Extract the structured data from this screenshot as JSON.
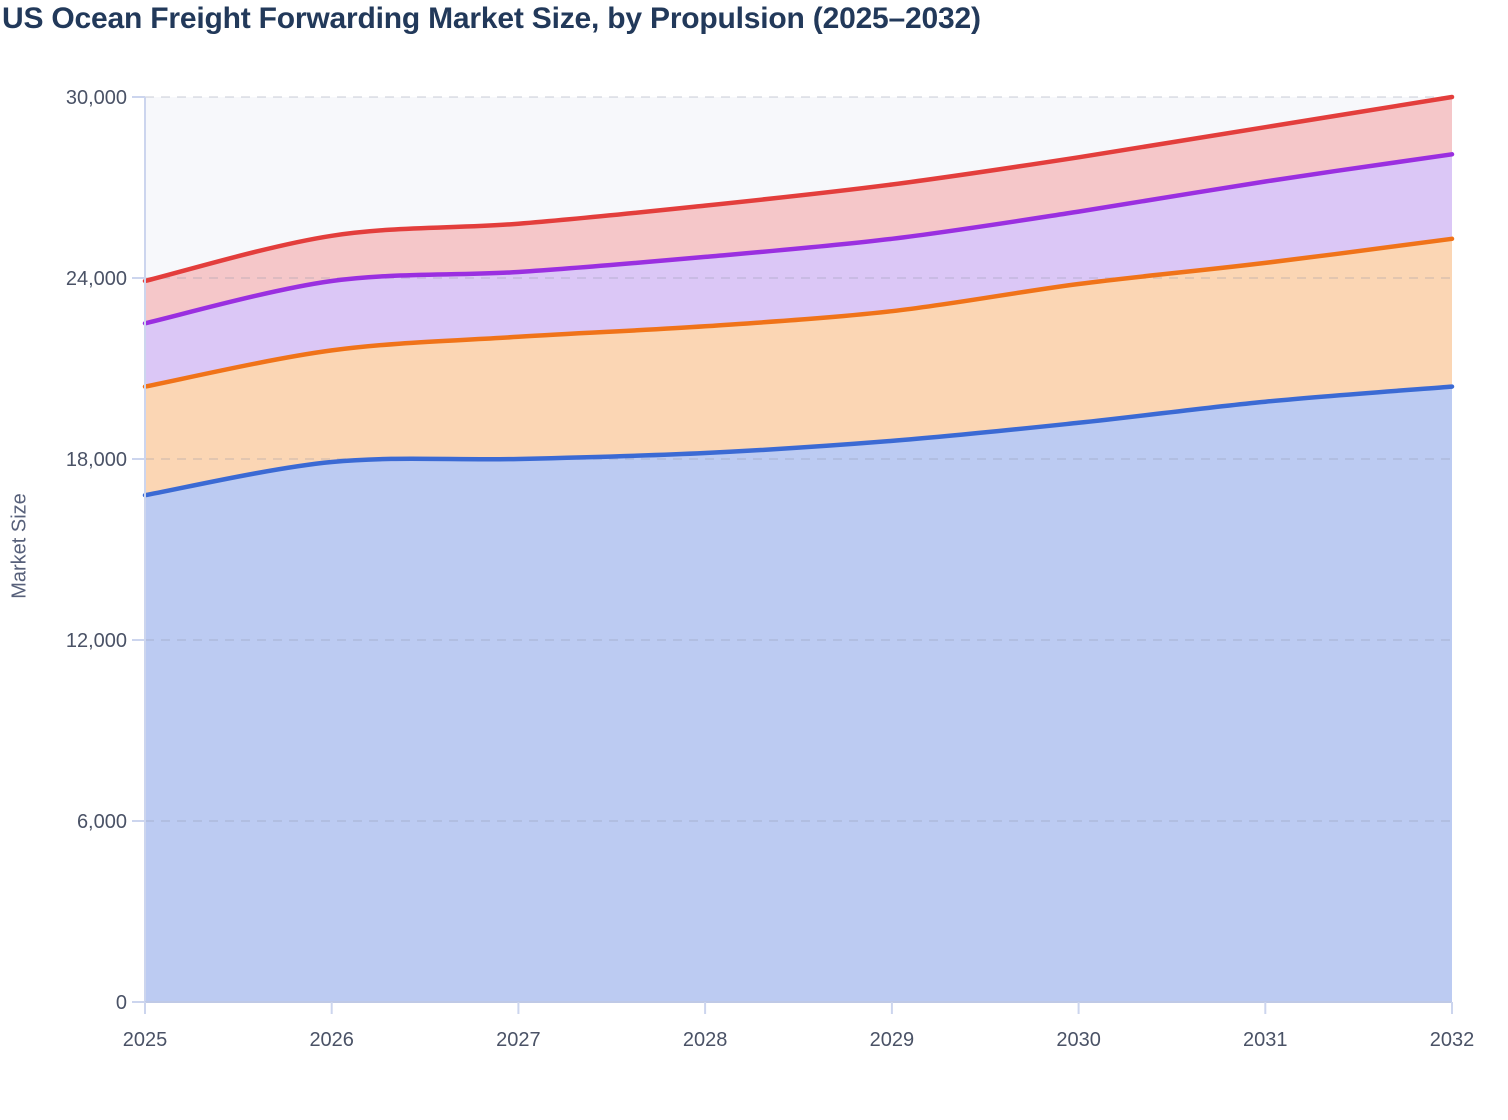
{
  "chart_data": {
    "type": "area",
    "stacked": true,
    "title": "US Ocean Freight Forwarding Market Size, by Propulsion (2025–2032)",
    "xlabel": "",
    "ylabel": "Market Size",
    "categories": [
      "2025",
      "2026",
      "2027",
      "2028",
      "2029",
      "2030",
      "2031",
      "2032"
    ],
    "y_ticks": [
      0,
      6000,
      12000,
      18000,
      24000,
      30000
    ],
    "y_tick_labels": [
      "0",
      "6,000",
      "12,000",
      "18,000",
      "24,000",
      "30,000"
    ],
    "ylim": [
      0,
      30000
    ],
    "grid": "horizontal-dashed",
    "legend": "none",
    "series": [
      {
        "id": "blue",
        "name": "Blue (bottom layer)",
        "line_color": "#3b6ad4",
        "fill_color": "#bccbf2",
        "values": [
          16800,
          17900,
          18000,
          18200,
          18600,
          19200,
          19900,
          20400
        ]
      },
      {
        "id": "orange",
        "name": "Orange (second layer)",
        "line_color": "#f07319",
        "fill_color": "#fbd6b4",
        "values": [
          3600,
          3700,
          4050,
          4200,
          4300,
          4600,
          4600,
          4900
        ]
      },
      {
        "id": "purple",
        "name": "Purple (third layer)",
        "line_color": "#9a2fe0",
        "fill_color": "#dbc7f6",
        "values": [
          2100,
          2300,
          2150,
          2300,
          2400,
          2400,
          2700,
          2800
        ]
      },
      {
        "id": "red",
        "name": "Red (top layer)",
        "line_color": "#e33e3c",
        "fill_color": "#f5c7c9",
        "values": [
          1400,
          1500,
          1600,
          1700,
          1800,
          1800,
          1800,
          1900
        ]
      }
    ],
    "stacked_totals": [
      23900,
      25400,
      25800,
      26400,
      27100,
      28000,
      29000,
      30000
    ],
    "colors": {
      "plot_background": "#f7f8fb",
      "gridline": "#8c93a6",
      "axis_line": "#ccd5ee",
      "baseline": "#bfc9e6",
      "tick_label": "#4a5266",
      "title": "#22395a",
      "axis_title": "#57607a"
    }
  }
}
